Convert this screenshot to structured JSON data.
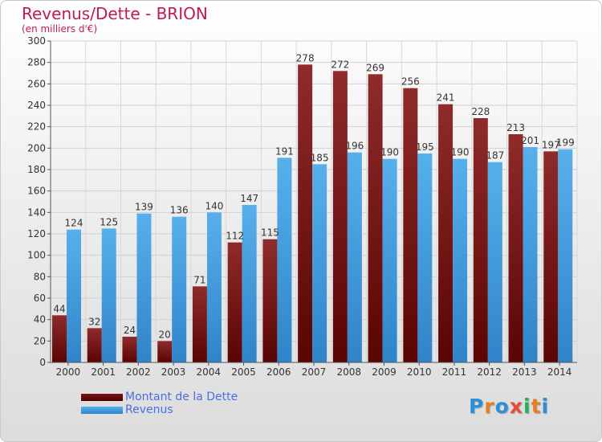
{
  "title": "Revenus/Dette - BRION",
  "subtitle": "(en milliers d'€)",
  "logo": "Proxiti",
  "colors": {
    "dette": "#8b1a1a",
    "revenus": "#3c9ee0",
    "title": "#c2185b",
    "legend_text": "#4a6ee0"
  },
  "legend": [
    {
      "label": "Montant de la Dette",
      "color": "#6e0e0e"
    },
    {
      "label": "Revenus",
      "color": "#3c9ee0"
    }
  ],
  "chart_data": {
    "type": "bar",
    "title": "Revenus/Dette - BRION",
    "subtitle": "(en milliers d'€)",
    "categories": [
      "2000",
      "2001",
      "2002",
      "2003",
      "2004",
      "2005",
      "2006",
      "2007",
      "2008",
      "2009",
      "2010",
      "2011",
      "2012",
      "2013",
      "2014"
    ],
    "series": [
      {
        "name": "Montant de la Dette",
        "values": [
          44,
          32,
          24,
          20,
          71,
          112,
          115,
          278,
          272,
          269,
          256,
          241,
          228,
          213,
          197
        ]
      },
      {
        "name": "Revenus",
        "values": [
          124,
          125,
          139,
          136,
          140,
          147,
          191,
          185,
          196,
          190,
          195,
          190,
          187,
          201,
          199
        ]
      }
    ],
    "ylim": [
      0,
      300
    ],
    "yticks": [
      0,
      20,
      40,
      60,
      80,
      100,
      120,
      140,
      160,
      180,
      200,
      220,
      240,
      260,
      280,
      300
    ],
    "grid": true,
    "legend_position": "bottom-left"
  }
}
